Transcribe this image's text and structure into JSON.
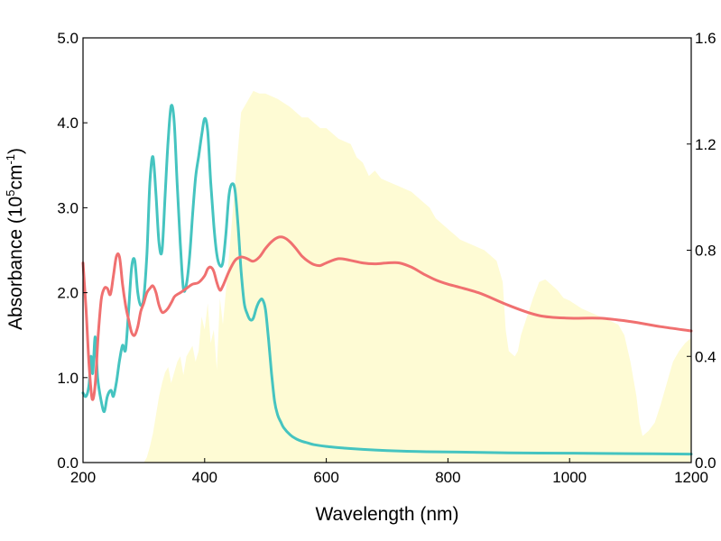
{
  "chart_data": {
    "type": "line",
    "xlabel": "Wavelength (nm)",
    "ylabel": {
      "main": "Absorbance (10",
      "sup1": "5",
      "mid": "cm",
      "sup2": "-1",
      "end": ")"
    },
    "xlim": [
      200,
      1200
    ],
    "ylim_left": [
      0.0,
      5.0
    ],
    "ylim_right": [
      0.0,
      1.6
    ],
    "x_ticks": [
      200,
      400,
      600,
      800,
      1000,
      1200
    ],
    "x_tick_labels": [
      "200",
      "400",
      "600",
      "800",
      "1000",
      "1200"
    ],
    "y_left_ticks": [
      0.0,
      1.0,
      2.0,
      3.0,
      4.0,
      5.0
    ],
    "y_left_tick_labels": [
      "0.0",
      "1.0",
      "2.0",
      "3.0",
      "4.0",
      "5.0"
    ],
    "y_right_ticks": [
      0.0,
      0.4,
      0.8,
      1.2,
      1.6
    ],
    "y_right_tick_labels": [
      "0.0",
      "0.4",
      "0.8",
      "1.2",
      "1.6"
    ],
    "colors": {
      "series_cyan": "#45c4c0",
      "series_red": "#f07070",
      "solar_fill": "#fefbd4"
    },
    "series": [
      {
        "name": "cyan absorbance",
        "axis": "left",
        "x": [
          200,
          205,
          210,
          213,
          216,
          220,
          224,
          230,
          235,
          240,
          246,
          250,
          255,
          260,
          265,
          270,
          275,
          280,
          285,
          290,
          295,
          300,
          305,
          310,
          315,
          320,
          325,
          330,
          335,
          340,
          345,
          350,
          355,
          360,
          365,
          370,
          375,
          380,
          385,
          390,
          395,
          400,
          405,
          410,
          415,
          420,
          425,
          430,
          435,
          440,
          445,
          450,
          455,
          460,
          465,
          470,
          475,
          480,
          485,
          490,
          495,
          500,
          505,
          510,
          515,
          520,
          525,
          530,
          540,
          550,
          560,
          570,
          580,
          600,
          630,
          660,
          700,
          750,
          800,
          900,
          1000,
          1100,
          1200
        ],
        "values": [
          0.82,
          0.78,
          0.92,
          1.25,
          1.05,
          1.48,
          1.0,
          0.72,
          0.6,
          0.78,
          0.85,
          0.78,
          0.95,
          1.2,
          1.38,
          1.33,
          1.8,
          2.3,
          2.38,
          2.0,
          1.85,
          1.95,
          2.45,
          3.3,
          3.6,
          3.15,
          2.58,
          2.5,
          3.15,
          3.8,
          4.2,
          4.0,
          3.25,
          2.58,
          2.05,
          2.1,
          2.4,
          2.9,
          3.35,
          3.6,
          3.85,
          4.05,
          3.9,
          3.3,
          2.8,
          2.45,
          2.32,
          2.36,
          2.7,
          3.15,
          3.28,
          3.2,
          2.78,
          2.25,
          1.88,
          1.75,
          1.68,
          1.7,
          1.82,
          1.9,
          1.92,
          1.8,
          1.45,
          1.05,
          0.72,
          0.56,
          0.48,
          0.41,
          0.33,
          0.28,
          0.25,
          0.23,
          0.21,
          0.19,
          0.17,
          0.155,
          0.14,
          0.13,
          0.125,
          0.115,
          0.11,
          0.105,
          0.1
        ]
      },
      {
        "name": "red absorbance",
        "axis": "left",
        "x": [
          200,
          205,
          210,
          215,
          220,
          225,
          230,
          235,
          240,
          245,
          250,
          255,
          260,
          265,
          270,
          275,
          280,
          285,
          290,
          295,
          300,
          305,
          310,
          315,
          320,
          325,
          330,
          335,
          340,
          345,
          350,
          355,
          360,
          370,
          380,
          390,
          400,
          405,
          410,
          415,
          420,
          425,
          430,
          440,
          450,
          460,
          470,
          480,
          490,
          500,
          510,
          520,
          530,
          540,
          550,
          560,
          570,
          580,
          590,
          600,
          620,
          640,
          660,
          680,
          700,
          720,
          740,
          760,
          780,
          800,
          850,
          900,
          950,
          1000,
          1050,
          1100,
          1150,
          1200
        ],
        "values": [
          2.35,
          1.8,
          1.15,
          0.75,
          0.92,
          1.5,
          1.92,
          2.05,
          2.05,
          1.98,
          2.2,
          2.43,
          2.42,
          2.1,
          1.85,
          1.68,
          1.53,
          1.5,
          1.6,
          1.78,
          1.88,
          2.0,
          2.05,
          2.08,
          2.0,
          1.85,
          1.77,
          1.78,
          1.82,
          1.88,
          1.95,
          1.98,
          2.0,
          2.05,
          2.1,
          2.12,
          2.2,
          2.28,
          2.3,
          2.25,
          2.12,
          2.03,
          2.08,
          2.25,
          2.38,
          2.42,
          2.4,
          2.37,
          2.42,
          2.52,
          2.6,
          2.65,
          2.65,
          2.6,
          2.52,
          2.43,
          2.37,
          2.33,
          2.32,
          2.35,
          2.4,
          2.38,
          2.35,
          2.34,
          2.35,
          2.35,
          2.3,
          2.22,
          2.15,
          2.1,
          2.0,
          1.85,
          1.73,
          1.7,
          1.7,
          1.66,
          1.6,
          1.55
        ]
      }
    ],
    "solar_spectrum": {
      "name": "solar irradiance (shaded)",
      "axis": "right",
      "x": [
        200,
        300,
        305,
        310,
        315,
        320,
        325,
        330,
        335,
        340,
        345,
        350,
        355,
        360,
        365,
        370,
        375,
        380,
        385,
        390,
        395,
        400,
        405,
        410,
        415,
        420,
        425,
        430,
        440,
        450,
        460,
        470,
        480,
        490,
        500,
        520,
        540,
        550,
        560,
        570,
        580,
        590,
        600,
        620,
        640,
        650,
        660,
        670,
        680,
        690,
        700,
        710,
        720,
        740,
        750,
        760,
        770,
        780,
        790,
        800,
        820,
        840,
        860,
        870,
        880,
        890,
        895,
        900,
        910,
        915,
        920,
        930,
        940,
        950,
        960,
        970,
        980,
        990,
        1000,
        1020,
        1040,
        1060,
        1080,
        1090,
        1100,
        1110,
        1115,
        1120,
        1130,
        1140,
        1150,
        1160,
        1170,
        1180,
        1190,
        1200
      ],
      "values": [
        0,
        0,
        0.02,
        0.06,
        0.11,
        0.18,
        0.25,
        0.3,
        0.34,
        0.36,
        0.3,
        0.34,
        0.38,
        0.4,
        0.33,
        0.4,
        0.42,
        0.44,
        0.38,
        0.42,
        0.55,
        0.5,
        0.6,
        0.45,
        0.5,
        0.35,
        0.62,
        0.52,
        0.78,
        1.05,
        1.32,
        1.36,
        1.4,
        1.39,
        1.39,
        1.37,
        1.34,
        1.32,
        1.3,
        1.3,
        1.28,
        1.26,
        1.26,
        1.22,
        1.2,
        1.15,
        1.13,
        1.08,
        1.1,
        1.07,
        1.06,
        1.05,
        1.04,
        1.02,
        1.0,
        0.98,
        0.96,
        0.92,
        0.9,
        0.88,
        0.84,
        0.82,
        0.8,
        0.78,
        0.76,
        0.68,
        0.5,
        0.42,
        0.4,
        0.42,
        0.48,
        0.55,
        0.62,
        0.68,
        0.69,
        0.67,
        0.65,
        0.62,
        0.61,
        0.58,
        0.56,
        0.54,
        0.52,
        0.48,
        0.38,
        0.25,
        0.15,
        0.1,
        0.12,
        0.15,
        0.22,
        0.3,
        0.38,
        0.42,
        0.45,
        0.47
      ]
    }
  }
}
